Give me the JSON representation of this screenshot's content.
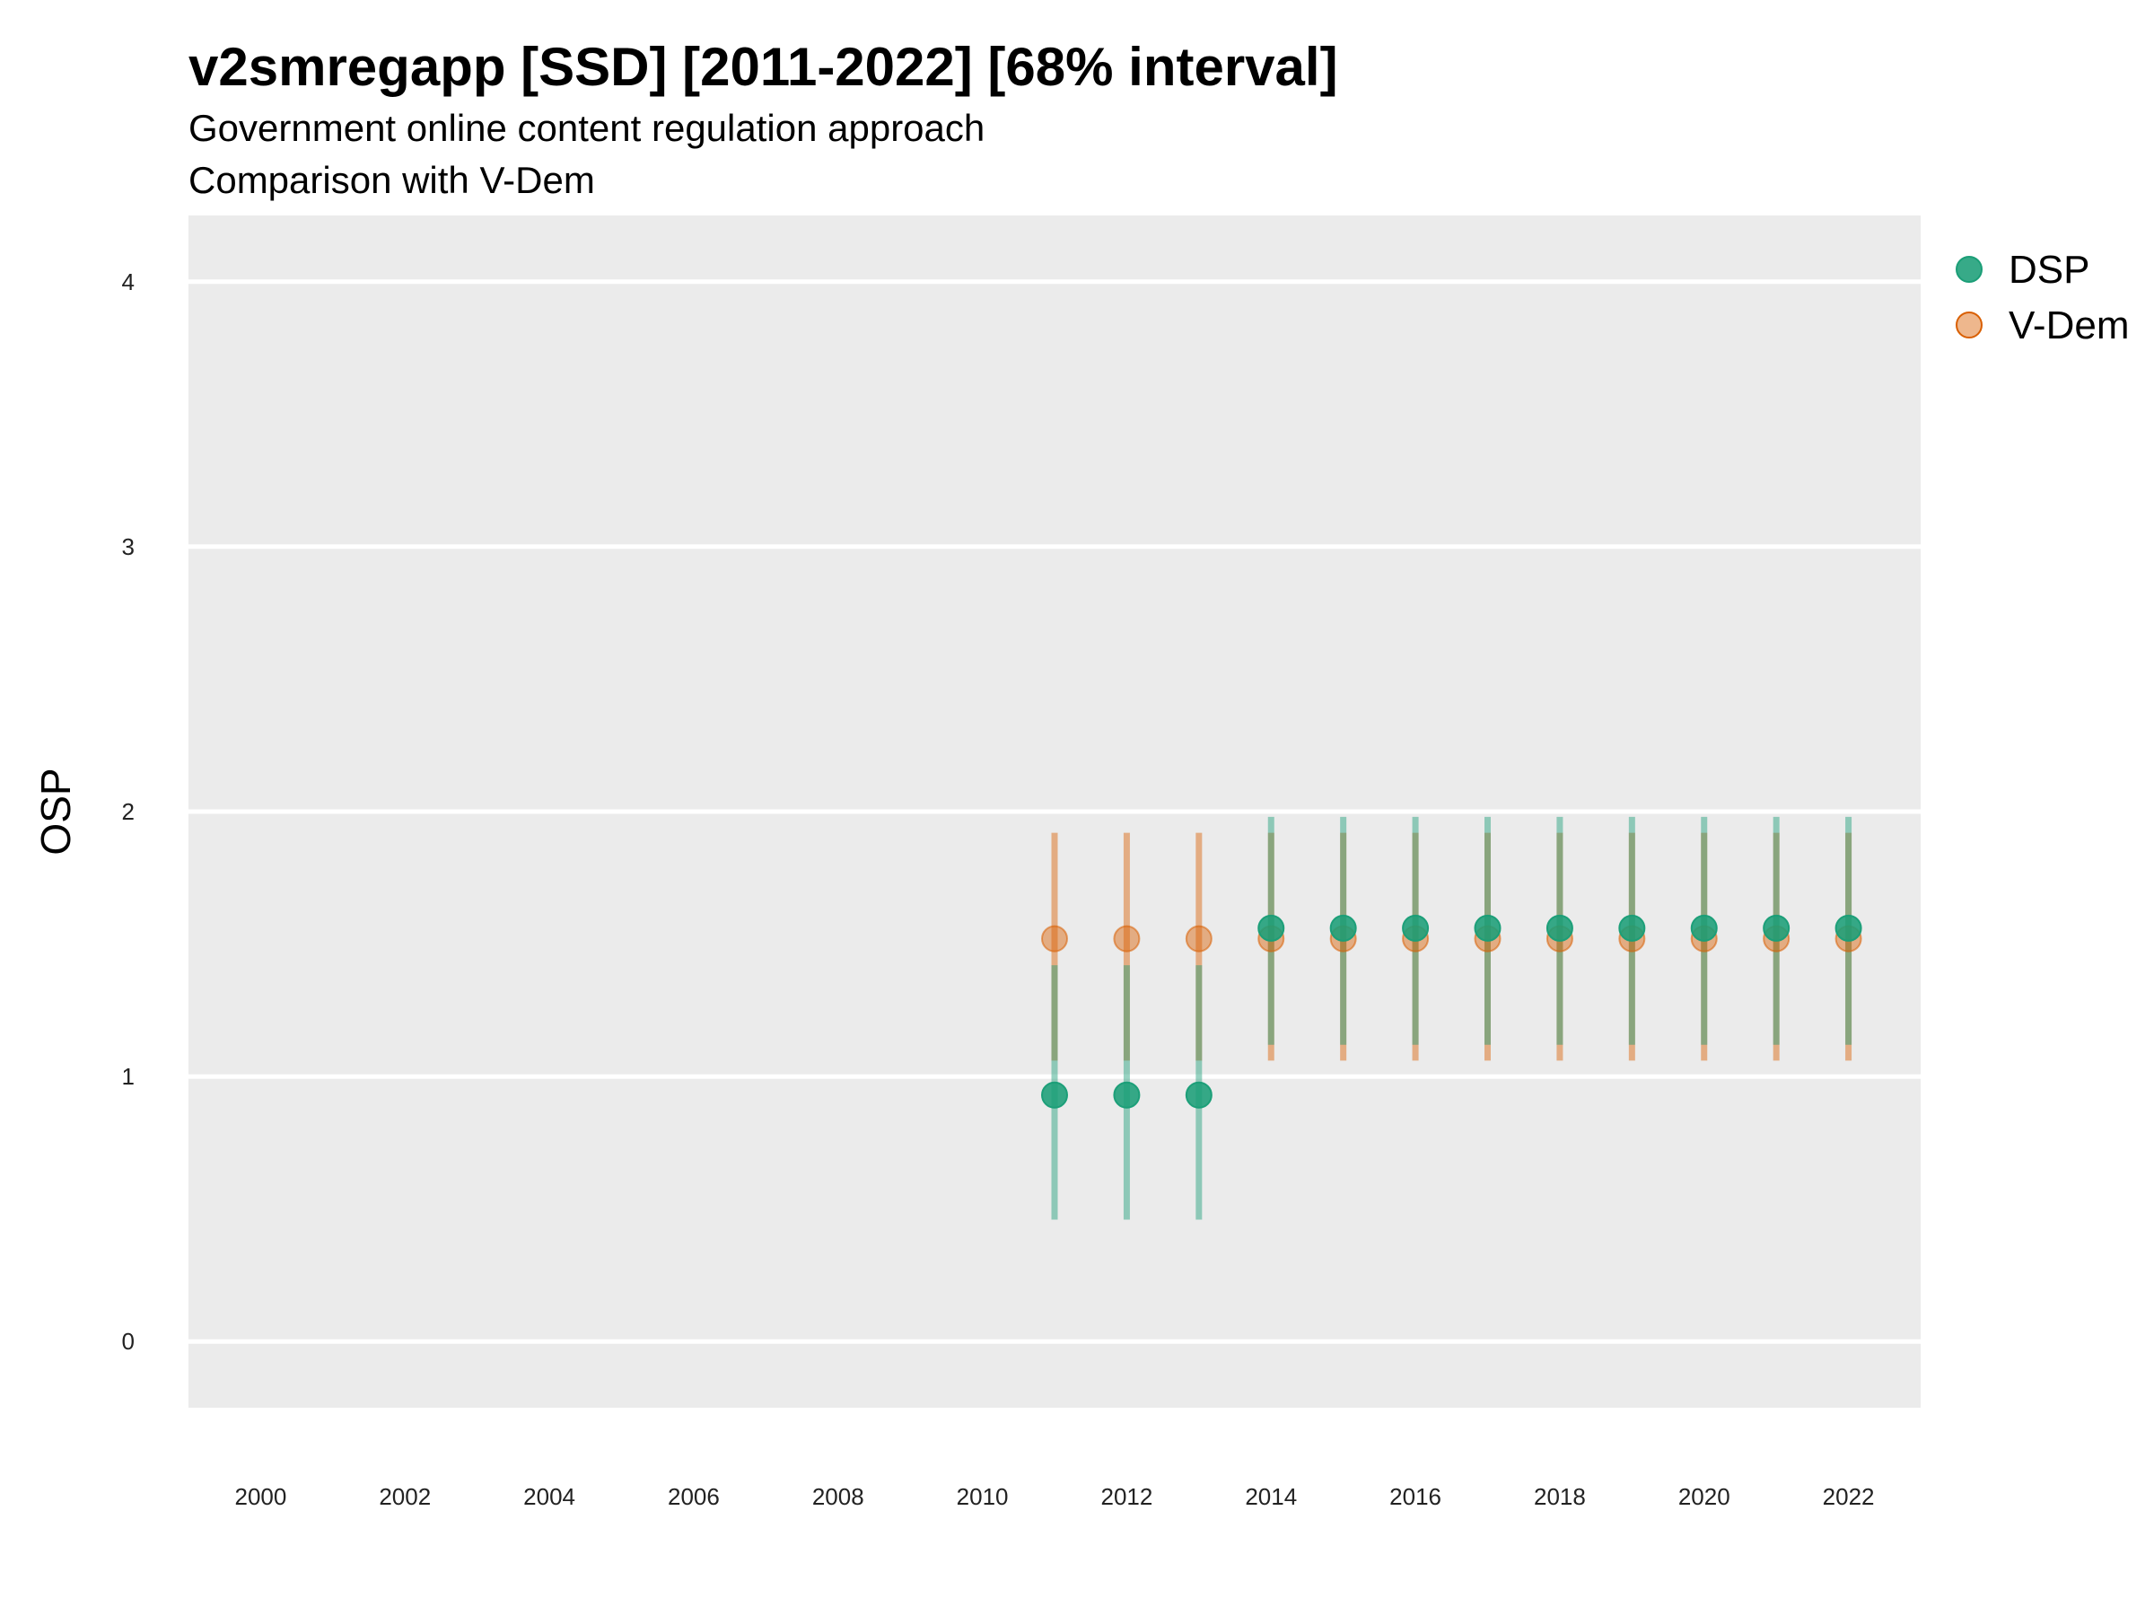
{
  "chart_data": {
    "type": "scatter",
    "title": "v2smregapp [SSD] [2011-2022] [68% interval]",
    "subtitle_lines": [
      "Government online content regulation approach",
      "Comparison with V-Dem"
    ],
    "xlabel": "",
    "ylabel": "OSP",
    "xlim": [
      1999,
      2023
    ],
    "ylim": [
      -0.25,
      4.25
    ],
    "x_ticks": [
      2000,
      2002,
      2004,
      2006,
      2008,
      2010,
      2012,
      2014,
      2016,
      2018,
      2020,
      2022
    ],
    "y_ticks": [
      0,
      1,
      2,
      3,
      4
    ],
    "grid": true,
    "legend_position": "right",
    "series": [
      {
        "name": "DSP",
        "color": "#1b9e77",
        "x": [
          2011,
          2012,
          2013,
          2014,
          2015,
          2016,
          2017,
          2018,
          2019,
          2020,
          2021,
          2022
        ],
        "y": [
          0.93,
          0.93,
          0.93,
          1.56,
          1.56,
          1.56,
          1.56,
          1.56,
          1.56,
          1.56,
          1.56,
          1.56
        ],
        "low": [
          0.46,
          0.46,
          0.46,
          1.12,
          1.12,
          1.12,
          1.12,
          1.12,
          1.12,
          1.12,
          1.12,
          1.12
        ],
        "high": [
          1.42,
          1.42,
          1.42,
          1.98,
          1.98,
          1.98,
          1.98,
          1.98,
          1.98,
          1.98,
          1.98,
          1.98
        ]
      },
      {
        "name": "V-Dem",
        "color": "#d95f02",
        "x": [
          2011,
          2012,
          2013,
          2014,
          2015,
          2016,
          2017,
          2018,
          2019,
          2020,
          2021,
          2022
        ],
        "y": [
          1.52,
          1.52,
          1.52,
          1.52,
          1.52,
          1.52,
          1.52,
          1.52,
          1.52,
          1.52,
          1.52,
          1.52
        ],
        "low": [
          1.06,
          1.06,
          1.06,
          1.06,
          1.06,
          1.06,
          1.06,
          1.06,
          1.06,
          1.06,
          1.06,
          1.06
        ],
        "high": [
          1.92,
          1.92,
          1.92,
          1.92,
          1.92,
          1.92,
          1.92,
          1.92,
          1.92,
          1.92,
          1.92,
          1.92
        ]
      }
    ]
  }
}
